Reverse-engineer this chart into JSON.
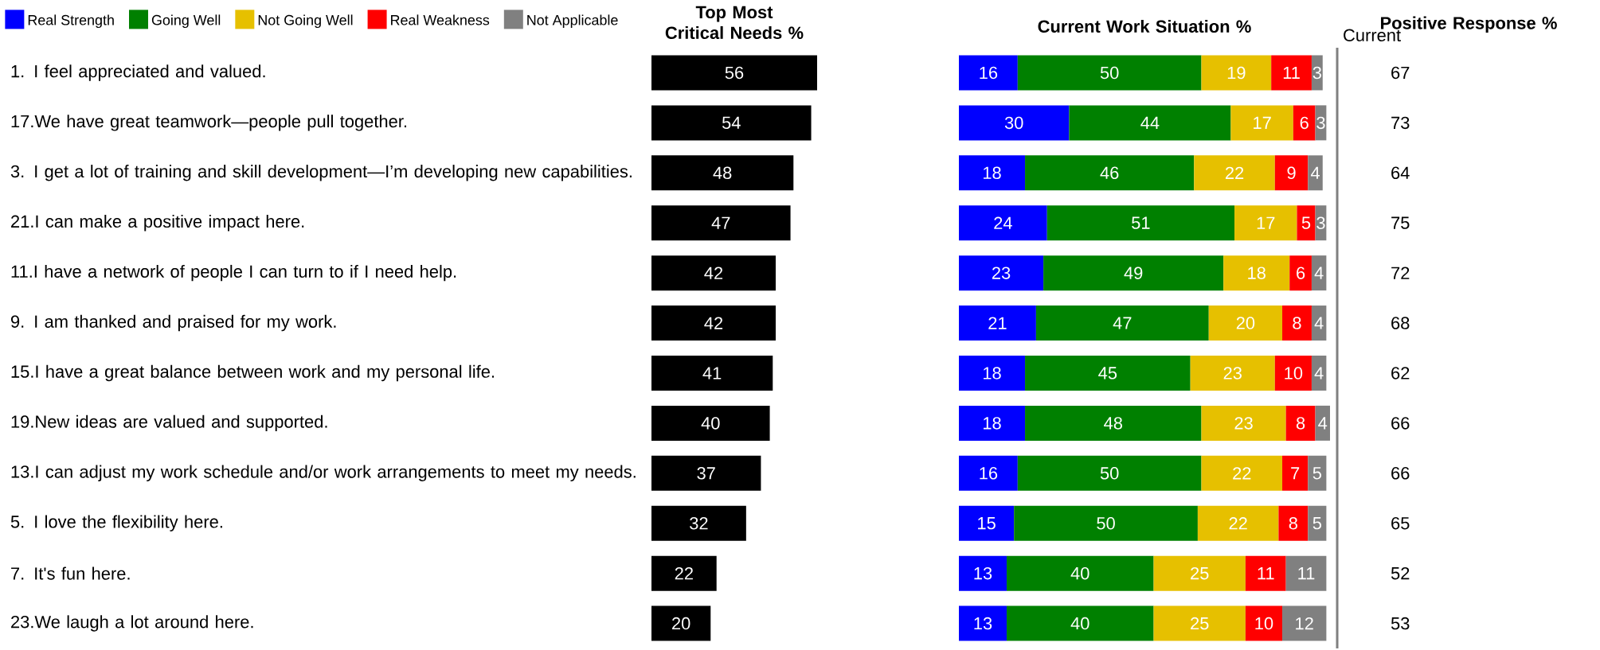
{
  "chart_data": [
    {
      "type": "bar",
      "orientation": "horizontal",
      "title": "Top Most Critical Needs %",
      "tick_labels": "y",
      "data_labels": true,
      "color": "#000000",
      "categories": [
        "1. I feel appreciated and valued.",
        "17.We have great teamwork—people pull together.",
        "3. I get a lot of training and skill development—I’m developing new capabilities.",
        "21.I can make a positive impact here.",
        "11.I have a network of people I can turn to if I need help.",
        "9. I am thanked and praised for my work.",
        "15.I have a great balance between work and my personal life.",
        "19.New ideas are valued and supported.",
        "13.I can adjust my work schedule and/or work arrangements to meet my needs.",
        "5. I love the flexibility here.",
        "7. It's fun here.",
        "23.We laugh a lot around here."
      ],
      "values": [
        56,
        54,
        48,
        47,
        42,
        42,
        41,
        40,
        37,
        32,
        22,
        20
      ]
    },
    {
      "type": "bar",
      "orientation": "horizontal",
      "stacked": true,
      "title": "Current Work Situation %",
      "tick_labels": false,
      "data_labels": true,
      "legend": "top left",
      "categories": [
        null,
        null,
        null,
        null,
        null,
        null,
        null,
        null,
        null,
        null,
        null,
        null
      ],
      "series": [
        {
          "name": "Real Strength",
          "color": "#0000ff",
          "values": [
            16,
            30,
            18,
            24,
            23,
            21,
            18,
            18,
            16,
            15,
            13,
            13
          ]
        },
        {
          "name": "Going Well",
          "color": "#008000",
          "values": [
            50,
            44,
            46,
            51,
            49,
            47,
            45,
            48,
            50,
            50,
            40,
            40
          ]
        },
        {
          "name": "Not Going Well",
          "color": "#e6c000",
          "values": [
            19,
            17,
            22,
            17,
            18,
            20,
            23,
            23,
            22,
            22,
            25,
            25
          ]
        },
        {
          "name": "Real Weakness",
          "color": "#ff0000",
          "values": [
            11,
            6,
            9,
            5,
            6,
            8,
            10,
            8,
            7,
            8,
            11,
            10
          ]
        },
        {
          "name": "Not Applicable",
          "color": "#808080",
          "values": [
            3,
            3,
            4,
            3,
            4,
            4,
            4,
            4,
            5,
            5,
            11,
            12
          ]
        }
      ]
    },
    {
      "type": "other",
      "title": "Positive Response %",
      "subtitle": "Current",
      "data_labels": true,
      "categories": [
        null,
        null,
        null,
        null,
        null,
        null,
        null,
        null,
        null,
        null,
        null,
        null
      ],
      "values": [
        67,
        73,
        64,
        75,
        72,
        68,
        62,
        66,
        66,
        65,
        52,
        53
      ]
    }
  ]
}
